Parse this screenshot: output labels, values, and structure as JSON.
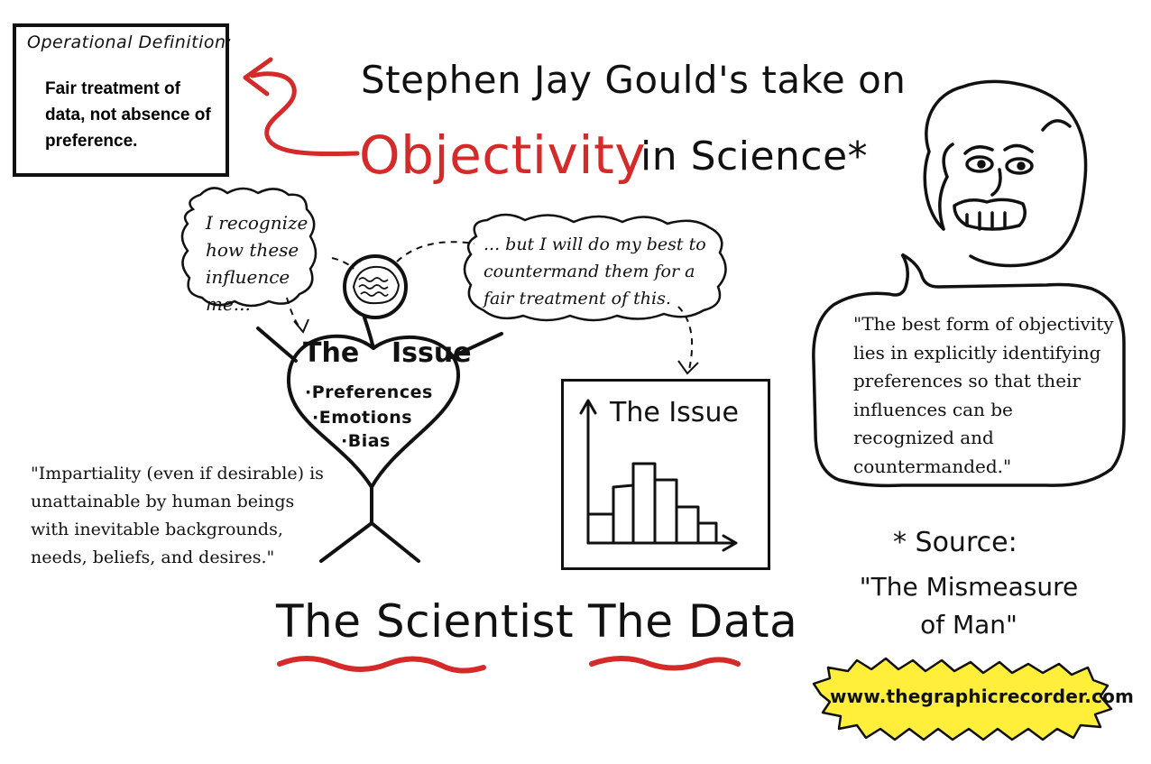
{
  "operational_definition": {
    "heading": "Operational Definition:",
    "text": "Fair treatment of data, not absence of preference."
  },
  "title": {
    "line1": "Stephen Jay Gould's take on",
    "highlight": "Objectivity",
    "rest": "in Science*"
  },
  "thought_bubbles": {
    "left": "I recognize how these influence me...",
    "right": "... but I will do my best to countermand them for a fair treatment of this."
  },
  "scientist": {
    "issue_title_a": "The",
    "issue_title_b": "Issue",
    "issue_items": [
      "·Preferences",
      "·Emotions",
      "·Bias"
    ],
    "label": "The Scientist"
  },
  "data": {
    "chart_title": "The Issue",
    "label": "The Data"
  },
  "quotes": {
    "left": "\"Impartiality (even if desirable) is unattainable by human beings with inevitable backgrounds, needs, beliefs, and desires.\"",
    "right": "\"The best form of objectivity lies in explicitly identifying preferences so that their influences can be recognized and countermanded.\""
  },
  "source": {
    "heading": "* Source:",
    "title": "\"The Mismeasure of Man\""
  },
  "website": "www.thegraphicrecorder.com",
  "colors": {
    "accent_red": "#d42a2a",
    "badge_yellow": "#ffef3a",
    "ink": "#111111"
  },
  "icons": [
    "arrow-icon",
    "brain-icon",
    "person-portrait-icon",
    "histogram-icon"
  ]
}
